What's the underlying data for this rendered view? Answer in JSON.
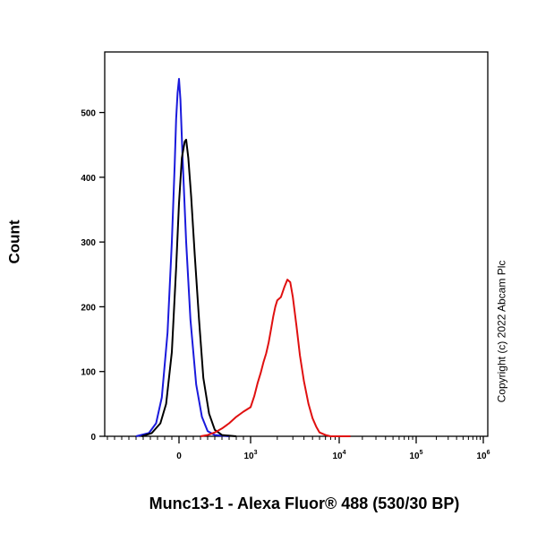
{
  "chart_data": {
    "type": "line",
    "title": "",
    "xlabel": "Munc13-1 - Alexa Fluor® 488 (530/30 BP)",
    "ylabel": "Count",
    "x_scale": "biexponential",
    "xlim": [
      -1000,
      1000000
    ],
    "ylim": [
      0,
      560
    ],
    "yticks": [
      0,
      100,
      200,
      300,
      400,
      500
    ],
    "xticks": [
      {
        "value": 0,
        "base": "0",
        "exp": ""
      },
      {
        "value": 1000,
        "base": "10",
        "exp": "3"
      },
      {
        "value": 10000,
        "base": "10",
        "exp": "4"
      },
      {
        "value": 100000,
        "base": "10",
        "exp": "5"
      },
      {
        "value": 1000000,
        "base": "10",
        "exp": "6"
      }
    ],
    "grid": false,
    "legend": "none",
    "series": [
      {
        "color": "#1a1adc",
        "x": [
          -600,
          -420,
          -320,
          -240,
          -160,
          -100,
          -60,
          -40,
          -20,
          0,
          20,
          50,
          100,
          160,
          240,
          320,
          400,
          500,
          700
        ],
        "y": [
          0,
          5,
          20,
          60,
          160,
          300,
          420,
          490,
          530,
          552,
          520,
          430,
          300,
          180,
          80,
          30,
          8,
          2,
          0
        ]
      },
      {
        "color": "#000000",
        "x": [
          -520,
          -380,
          -260,
          -180,
          -100,
          -40,
          0,
          40,
          80,
          100,
          130,
          170,
          220,
          280,
          340,
          420,
          500,
          600,
          800
        ],
        "y": [
          0,
          5,
          20,
          50,
          130,
          260,
          360,
          430,
          455,
          458,
          430,
          370,
          280,
          180,
          90,
          35,
          10,
          2,
          0
        ]
      },
      {
        "color": "#e01010",
        "x": [
          300,
          400,
          500,
          600,
          700,
          800,
          900,
          1000,
          1100,
          1200,
          1300,
          1400,
          1500,
          1600,
          1700,
          1800,
          1900,
          2000,
          2200,
          2400,
          2600,
          2800,
          3000,
          3300,
          3600,
          4000,
          4500,
          5000,
          5500,
          6000,
          7000,
          8000,
          10000,
          14000
        ],
        "y": [
          0,
          2,
          6,
          12,
          20,
          30,
          38,
          45,
          62,
          82,
          98,
          115,
          128,
          145,
          165,
          185,
          200,
          210,
          215,
          230,
          242,
          238,
          215,
          170,
          125,
          85,
          50,
          28,
          15,
          6,
          2,
          0,
          0,
          0
        ]
      }
    ]
  },
  "copyright": "Copyright (c) 2022 Abcam Plc"
}
